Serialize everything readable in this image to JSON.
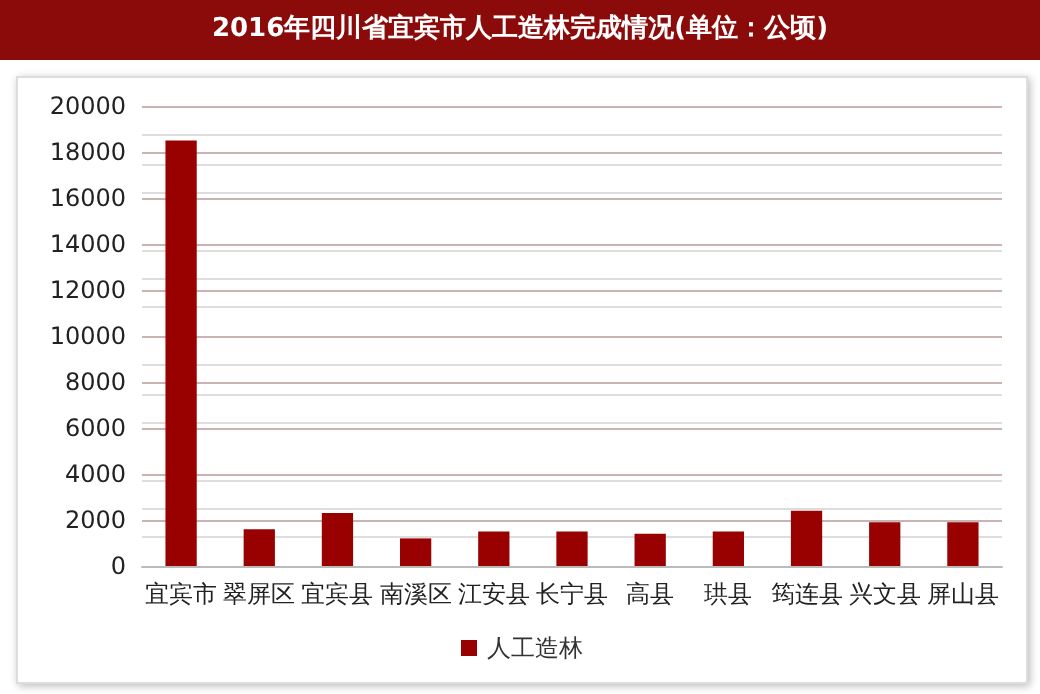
{
  "chart_data": {
    "type": "bar",
    "title": "2016年四川省宜宾市人工造林完成情况(单位：公顷)",
    "categories": [
      "宜宾市",
      "翠屏区",
      "宜宾县",
      "南溪区",
      "江安县",
      "长宁县",
      "高县",
      "珙县",
      "筠连县",
      "兴文县",
      "屏山县"
    ],
    "series": [
      {
        "name": "人工造林",
        "color": "#990000",
        "values": [
          18500,
          1600,
          2300,
          1200,
          1500,
          1500,
          1400,
          1500,
          2400,
          1900,
          1900
        ]
      }
    ],
    "ylim": [
      0,
      20000
    ],
    "yticks": [
      0,
      2000,
      4000,
      6000,
      8000,
      10000,
      12000,
      14000,
      16000,
      18000,
      20000
    ],
    "grid": "y",
    "legend": "bottom"
  }
}
